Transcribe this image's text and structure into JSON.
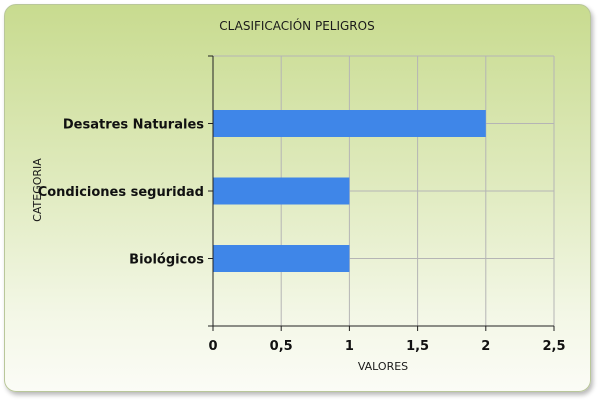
{
  "chart_data": {
    "type": "bar",
    "orientation": "horizontal",
    "title": "CLASIFICACIÓN PELIGROS",
    "xlabel": "VALORES",
    "ylabel": "CATEGORIA",
    "categories": [
      "Desatres Naturales",
      "Condiciones seguridad",
      "Biológicos"
    ],
    "values": [
      2,
      1,
      1
    ],
    "xlim": [
      0,
      2.5
    ],
    "xticks": [
      0,
      0.5,
      1,
      1.5,
      2,
      2.5
    ],
    "xtick_labels": [
      "0",
      "0,5",
      "1",
      "1,5",
      "2",
      "2,5"
    ],
    "grid": true,
    "legend": "none",
    "bar_color": "#3f86e8",
    "grid_color": "#b5b5b5",
    "background_color": "#d6e4a6"
  }
}
